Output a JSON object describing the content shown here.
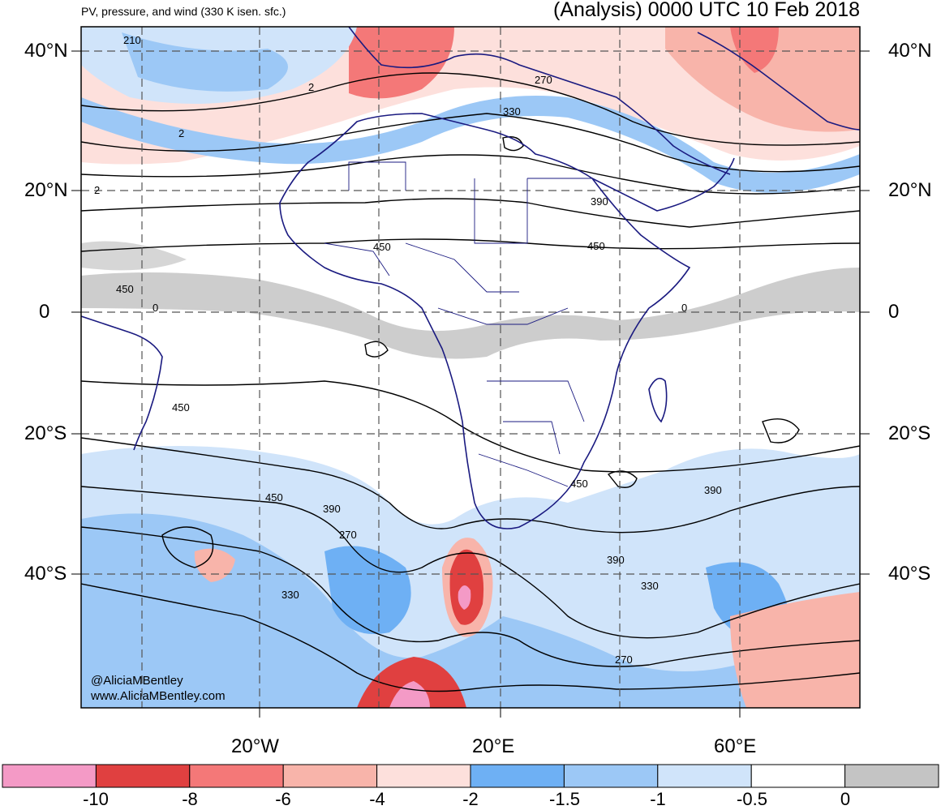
{
  "header": {
    "title_left": "PV, pressure, and wind (330 K isen. sfc.)",
    "title_right": "(Analysis) 0000 UTC 10 Feb 2018"
  },
  "axes": {
    "lat_left": [
      "40°N",
      "20°N",
      "0",
      "20°S",
      "40°S"
    ],
    "lat_right": [
      "40°N",
      "20°N",
      "0",
      "20°S",
      "40°S"
    ],
    "lon_bottom": [
      "20°W",
      "20°E",
      "60°E"
    ]
  },
  "watermark": {
    "handle": "@AliciaMBentley",
    "site": "www.AliciaMBentley.com"
  },
  "contour_labels": [
    "210",
    "2",
    "2",
    "2",
    "270",
    "330",
    "390",
    "450",
    "450",
    "450",
    "0",
    "0",
    "450",
    "450",
    "450",
    "390",
    "270",
    "330",
    "390",
    "330",
    "270",
    "390"
  ],
  "colorbar": {
    "colors": [
      "#f49ac6",
      "#e04040",
      "#f47878",
      "#f8b4aa",
      "#fde0dc",
      "#6eb0f4",
      "#9cc8f6",
      "#d0e4fa",
      "#ffffff",
      "#c4c4c4"
    ],
    "ticks": [
      "-10",
      "-8",
      "-6",
      "-4",
      "-2",
      "-1.5",
      "-1",
      "-0.5",
      "0"
    ]
  }
}
